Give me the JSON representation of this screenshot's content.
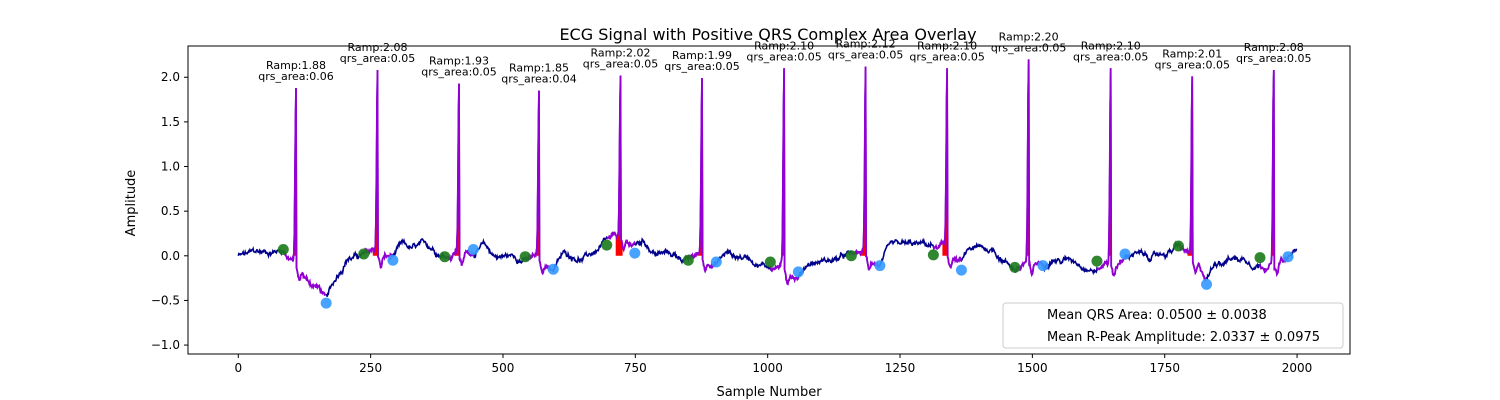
{
  "chart_data": {
    "type": "line",
    "title": "ECG Signal with Positive QRS Complex Area Overlay",
    "xlabel": "Sample Number",
    "ylabel": "Amplitude",
    "xlim": [
      -95,
      2100
    ],
    "ylim": [
      -1.1,
      2.35
    ],
    "xticks": [
      0,
      250,
      500,
      750,
      1000,
      1250,
      1500,
      1750,
      2000
    ],
    "yticks": [
      -1.0,
      -0.5,
      0.0,
      0.5,
      1.0,
      1.5,
      2.0
    ],
    "grid": false,
    "colors": {
      "signal": "#00008b",
      "qrs_segment": "#9400d3",
      "qrs_area": "#ff0000",
      "onset_marker": "#1a7a1a",
      "offset_marker": "#3399ff"
    },
    "beats": [
      {
        "r_x": 109,
        "r_y": 1.88,
        "onset": [
          85,
          0.07
        ],
        "offset": [
          166,
          -0.53
        ],
        "label_line1": "Ramp:1.88",
        "label_line2": "qrs_area:0.06"
      },
      {
        "r_x": 263,
        "r_y": 2.08,
        "onset": [
          237,
          0.02
        ],
        "offset": [
          292,
          -0.05
        ],
        "label_line1": "Ramp:2.08",
        "label_line2": "qrs_area:0.05"
      },
      {
        "r_x": 417,
        "r_y": 1.93,
        "onset": [
          390,
          -0.01
        ],
        "offset": [
          444,
          0.07
        ],
        "label_line1": "Ramp:1.93",
        "label_line2": "qrs_area:0.05"
      },
      {
        "r_x": 568,
        "r_y": 1.85,
        "onset": [
          542,
          -0.01
        ],
        "offset": [
          595,
          -0.15
        ],
        "label_line1": "Ramp:1.85",
        "label_line2": "qrs_area:0.04"
      },
      {
        "r_x": 722,
        "r_y": 2.02,
        "onset": [
          696,
          0.12
        ],
        "offset": [
          749,
          0.03
        ],
        "label_line1": "Ramp:2.02",
        "label_line2": "qrs_area:0.05"
      },
      {
        "r_x": 876,
        "r_y": 1.99,
        "onset": [
          850,
          -0.05
        ],
        "offset": [
          903,
          -0.07
        ],
        "label_line1": "Ramp:1.99",
        "label_line2": "qrs_area:0.05"
      },
      {
        "r_x": 1031,
        "r_y": 2.1,
        "onset": [
          1005,
          -0.07
        ],
        "offset": [
          1058,
          -0.18
        ],
        "label_line1": "Ramp:2.10",
        "label_line2": "qrs_area:0.05"
      },
      {
        "r_x": 1185,
        "r_y": 2.12,
        "onset": [
          1158,
          0.0
        ],
        "offset": [
          1212,
          -0.11
        ],
        "label_line1": "Ramp:2.12",
        "label_line2": "qrs_area:0.05"
      },
      {
        "r_x": 1339,
        "r_y": 2.1,
        "onset": [
          1313,
          0.01
        ],
        "offset": [
          1366,
          -0.16
        ],
        "label_line1": "Ramp:2.10",
        "label_line2": "qrs_area:0.05"
      },
      {
        "r_x": 1493,
        "r_y": 2.2,
        "onset": [
          1467,
          -0.13
        ],
        "offset": [
          1520,
          -0.11
        ],
        "label_line1": "Ramp:2.20",
        "label_line2": "qrs_area:0.05"
      },
      {
        "r_x": 1648,
        "r_y": 2.1,
        "onset": [
          1622,
          -0.06
        ],
        "offset": [
          1675,
          0.02
        ],
        "label_line1": "Ramp:2.10",
        "label_line2": "qrs_area:0.05"
      },
      {
        "r_x": 1802,
        "r_y": 2.01,
        "onset": [
          1776,
          0.11
        ],
        "offset": [
          1829,
          -0.32
        ],
        "label_line1": "Ramp:2.01",
        "label_line2": "qrs_area:0.05"
      },
      {
        "r_x": 1956,
        "r_y": 2.08,
        "onset": [
          1930,
          -0.02
        ],
        "offset": [
          1983,
          -0.01
        ],
        "label_line1": "Ramp:2.08",
        "label_line2": "qrs_area:0.05"
      }
    ],
    "legend": {
      "placement": "lower-right",
      "entries": [
        "Mean QRS Area: 0.0500 ± 0.0038",
        "Mean R-Peak Amplitude: 2.0337 ± 0.0975"
      ]
    }
  }
}
